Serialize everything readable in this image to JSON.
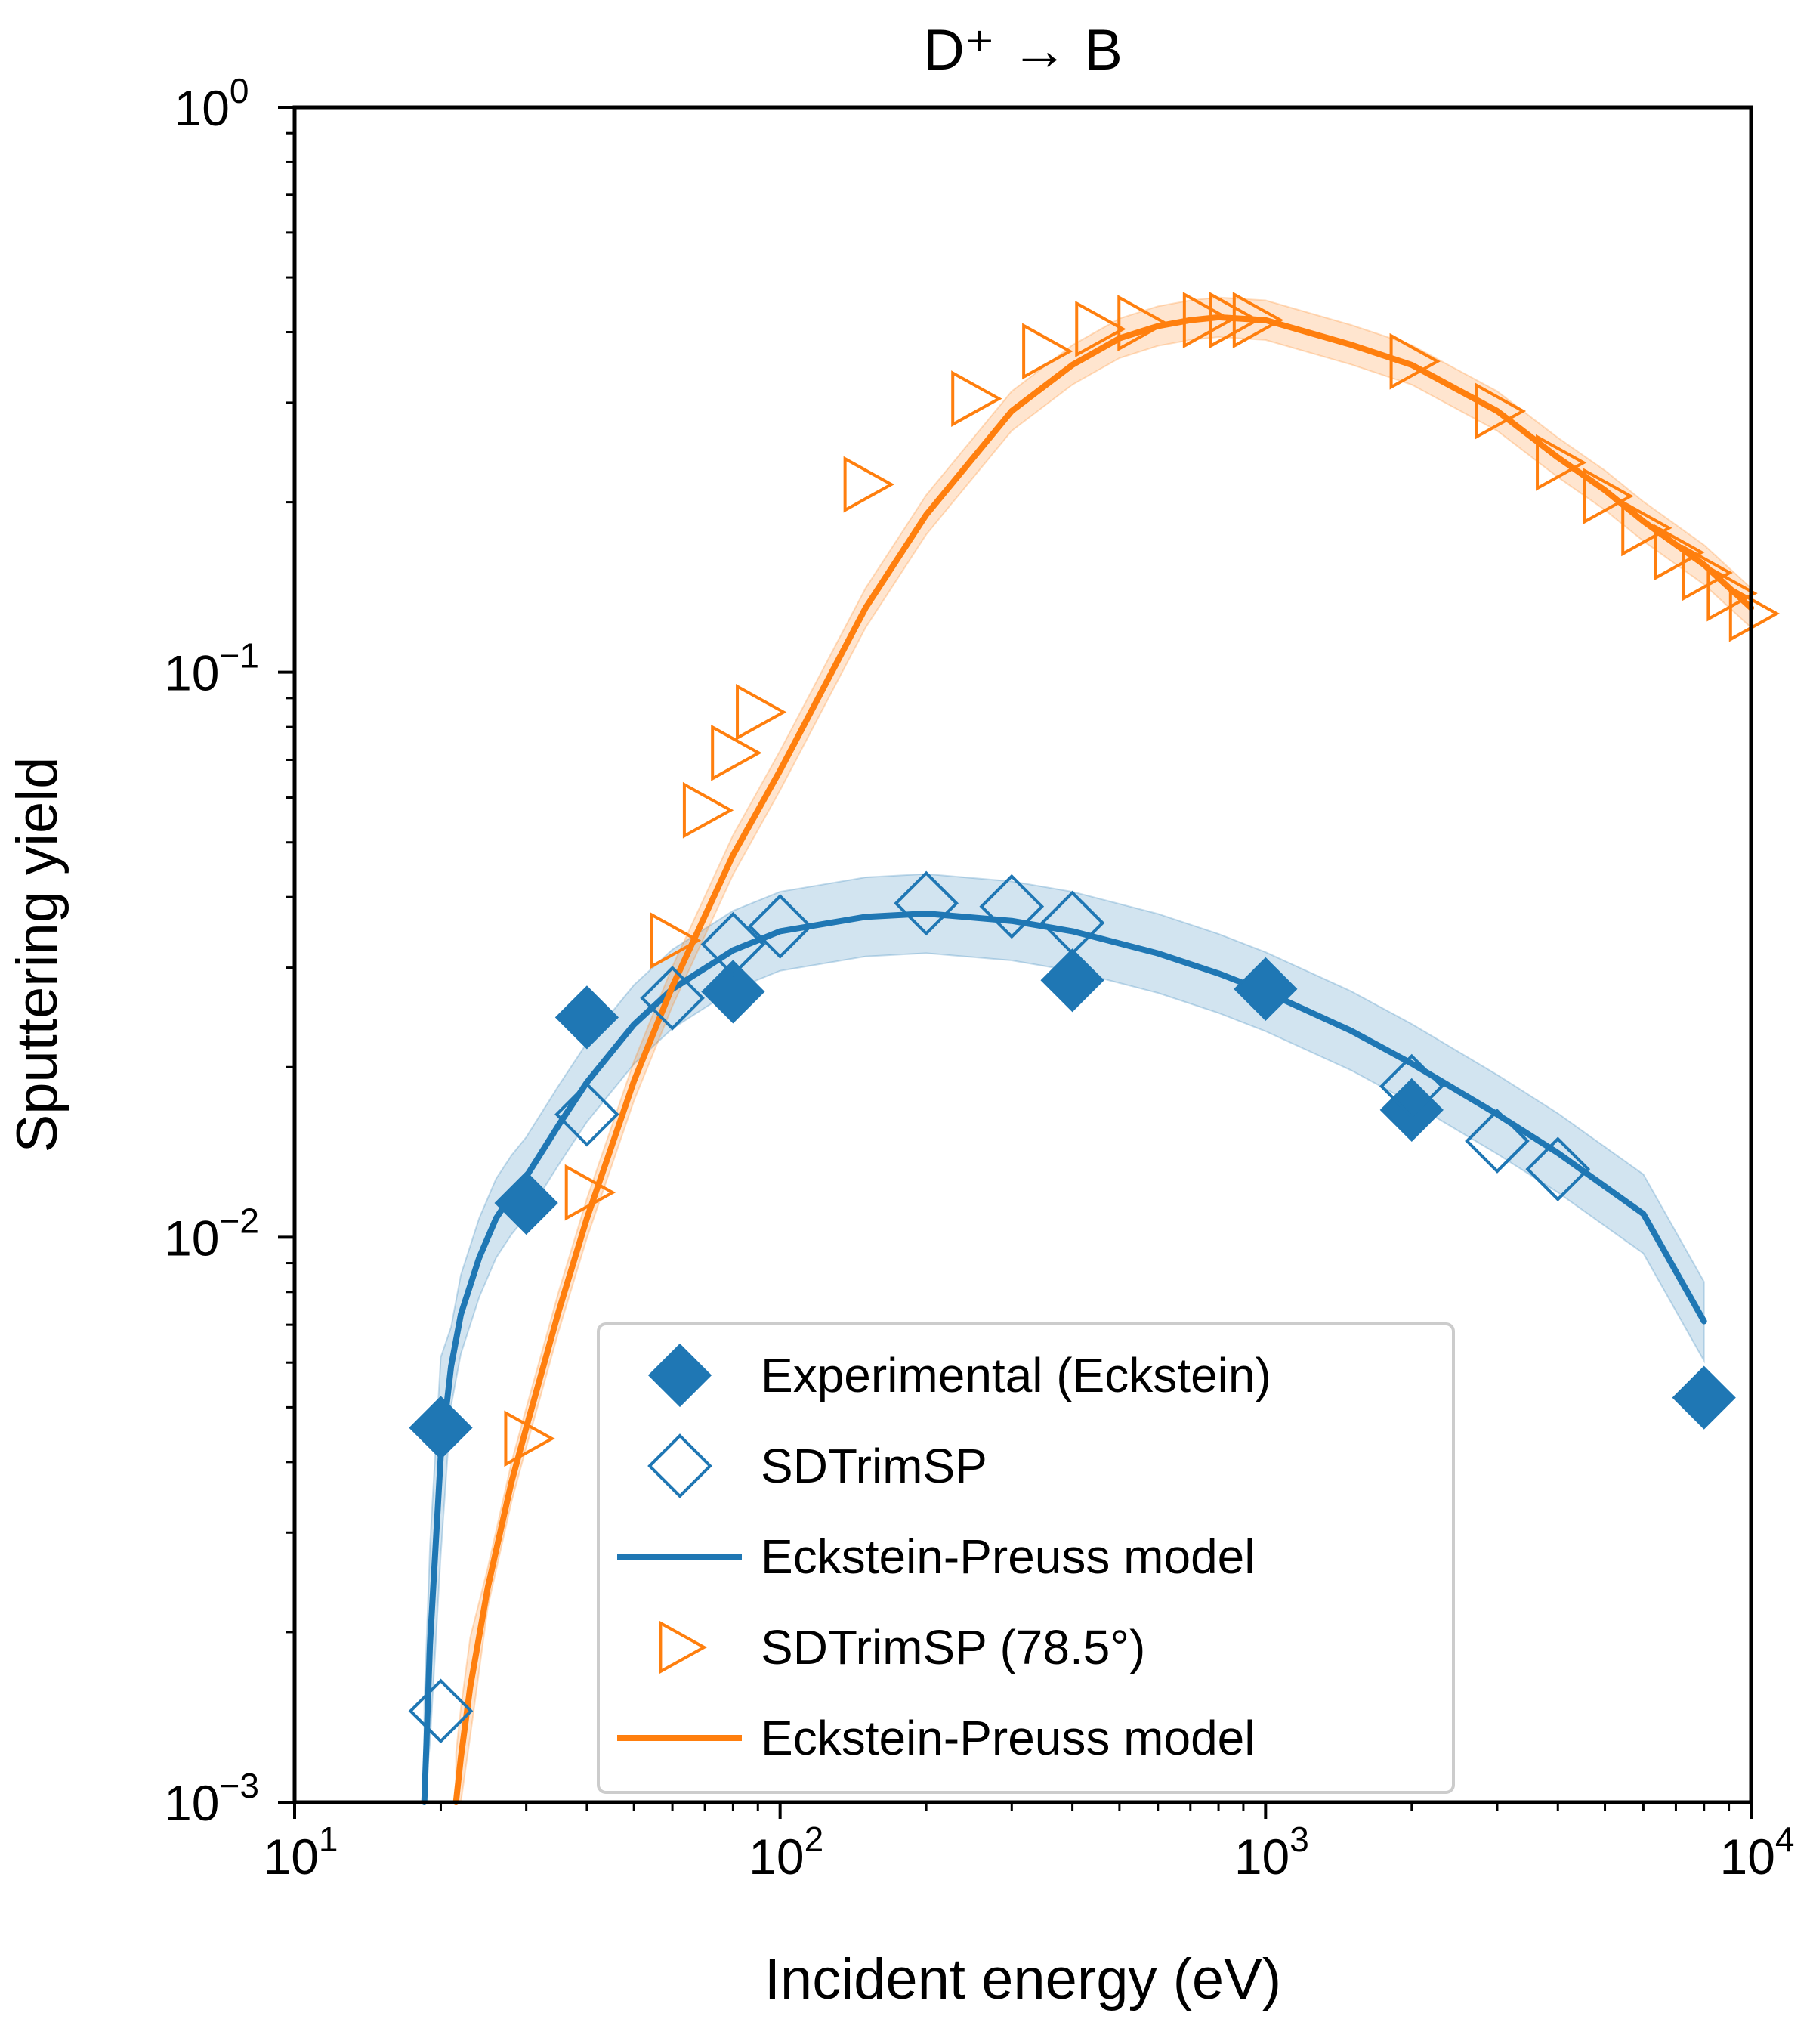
{
  "chart_data": {
    "type": "scatter",
    "title": "D⁺ → B",
    "xlabel": "Incident energy (eV)",
    "ylabel": "Sputtering yield",
    "xscale": "log",
    "yscale": "log",
    "xlim": [
      10,
      10000
    ],
    "ylim": [
      0.001,
      1
    ],
    "grid": false,
    "legend_position": "lower-center",
    "x_ticks": [
      {
        "base": "10",
        "exp": "1",
        "value": 10
      },
      {
        "base": "10",
        "exp": "2",
        "value": 100
      },
      {
        "base": "10",
        "exp": "3",
        "value": 1000
      },
      {
        "base": "10",
        "exp": "4",
        "value": 10000
      }
    ],
    "y_ticks": [
      {
        "base": "10",
        "exp": "−3",
        "value": 0.001
      },
      {
        "base": "10",
        "exp": "−2",
        "value": 0.01
      },
      {
        "base": "10",
        "exp": "−1",
        "value": 0.1
      },
      {
        "base": "10",
        "exp": "0",
        "value": 1
      }
    ],
    "series": [
      {
        "name": "Experimental (Eckstein)",
        "kind": "filled-diamond",
        "color": "#1f77b4",
        "x": [
          20,
          30,
          40,
          80,
          400,
          1000,
          2000,
          8000
        ],
        "y": [
          0.0046,
          0.0115,
          0.0245,
          0.0272,
          0.0285,
          0.0275,
          0.0168,
          0.0052
        ]
      },
      {
        "name": "SDTrimSP",
        "kind": "open-diamond",
        "color": "#1f77b4",
        "x": [
          20,
          40,
          60,
          80,
          100,
          200,
          300,
          400,
          2000,
          3000,
          4000
        ],
        "y": [
          0.00145,
          0.0165,
          0.0265,
          0.033,
          0.0355,
          0.039,
          0.0385,
          0.036,
          0.0185,
          0.0148,
          0.0132
        ]
      },
      {
        "name": "Eckstein-Preuss model",
        "kind": "line",
        "color": "#1f77b4",
        "x": [
          18.5,
          19,
          20,
          21,
          22,
          24,
          26,
          28,
          30,
          35,
          40,
          50,
          60,
          80,
          100,
          150,
          200,
          300,
          400,
          600,
          800,
          1000,
          1500,
          2000,
          3000,
          4000,
          5000,
          6000,
          8000
        ],
        "y": [
          0.001,
          0.0019,
          0.0041,
          0.0059,
          0.0073,
          0.0092,
          0.0108,
          0.0119,
          0.0128,
          0.0158,
          0.0188,
          0.0238,
          0.0275,
          0.0322,
          0.0348,
          0.0369,
          0.0374,
          0.0363,
          0.0348,
          0.0318,
          0.0293,
          0.0272,
          0.0232,
          0.0203,
          0.0165,
          0.0141,
          0.0123,
          0.011,
          0.0071
        ]
      },
      {
        "name": "SDTrimSP (78.5°)",
        "kind": "open-triangle-right",
        "color": "#ff7f0e",
        "x": [
          30,
          40,
          60,
          70,
          80,
          90,
          150,
          250,
          350,
          450,
          550,
          750,
          850,
          950,
          2000,
          3000,
          4000,
          5000,
          6000,
          7000,
          8000,
          9000,
          10000
        ],
        "y": [
          0.0044,
          0.012,
          0.0335,
          0.057,
          0.072,
          0.085,
          0.215,
          0.305,
          0.37,
          0.405,
          0.415,
          0.42,
          0.42,
          0.42,
          0.355,
          0.29,
          0.235,
          0.205,
          0.18,
          0.163,
          0.15,
          0.138,
          0.127
        ]
      },
      {
        "name": "Eckstein-Preuss model",
        "kind": "line",
        "color": "#ff7f0e",
        "x": [
          21.5,
          22,
          23,
          25,
          28,
          30,
          35,
          40,
          50,
          60,
          80,
          100,
          150,
          200,
          300,
          400,
          500,
          600,
          700,
          800,
          1000,
          1500,
          2000,
          3000,
          4000,
          5000,
          6000,
          8000,
          10000
        ],
        "y": [
          0.001,
          0.0012,
          0.0016,
          0.0024,
          0.0037,
          0.0046,
          0.0074,
          0.0108,
          0.0189,
          0.0278,
          0.0475,
          0.067,
          0.13,
          0.19,
          0.29,
          0.35,
          0.39,
          0.41,
          0.42,
          0.425,
          0.42,
          0.38,
          0.35,
          0.29,
          0.24,
          0.21,
          0.185,
          0.155,
          0.13
        ]
      }
    ]
  }
}
